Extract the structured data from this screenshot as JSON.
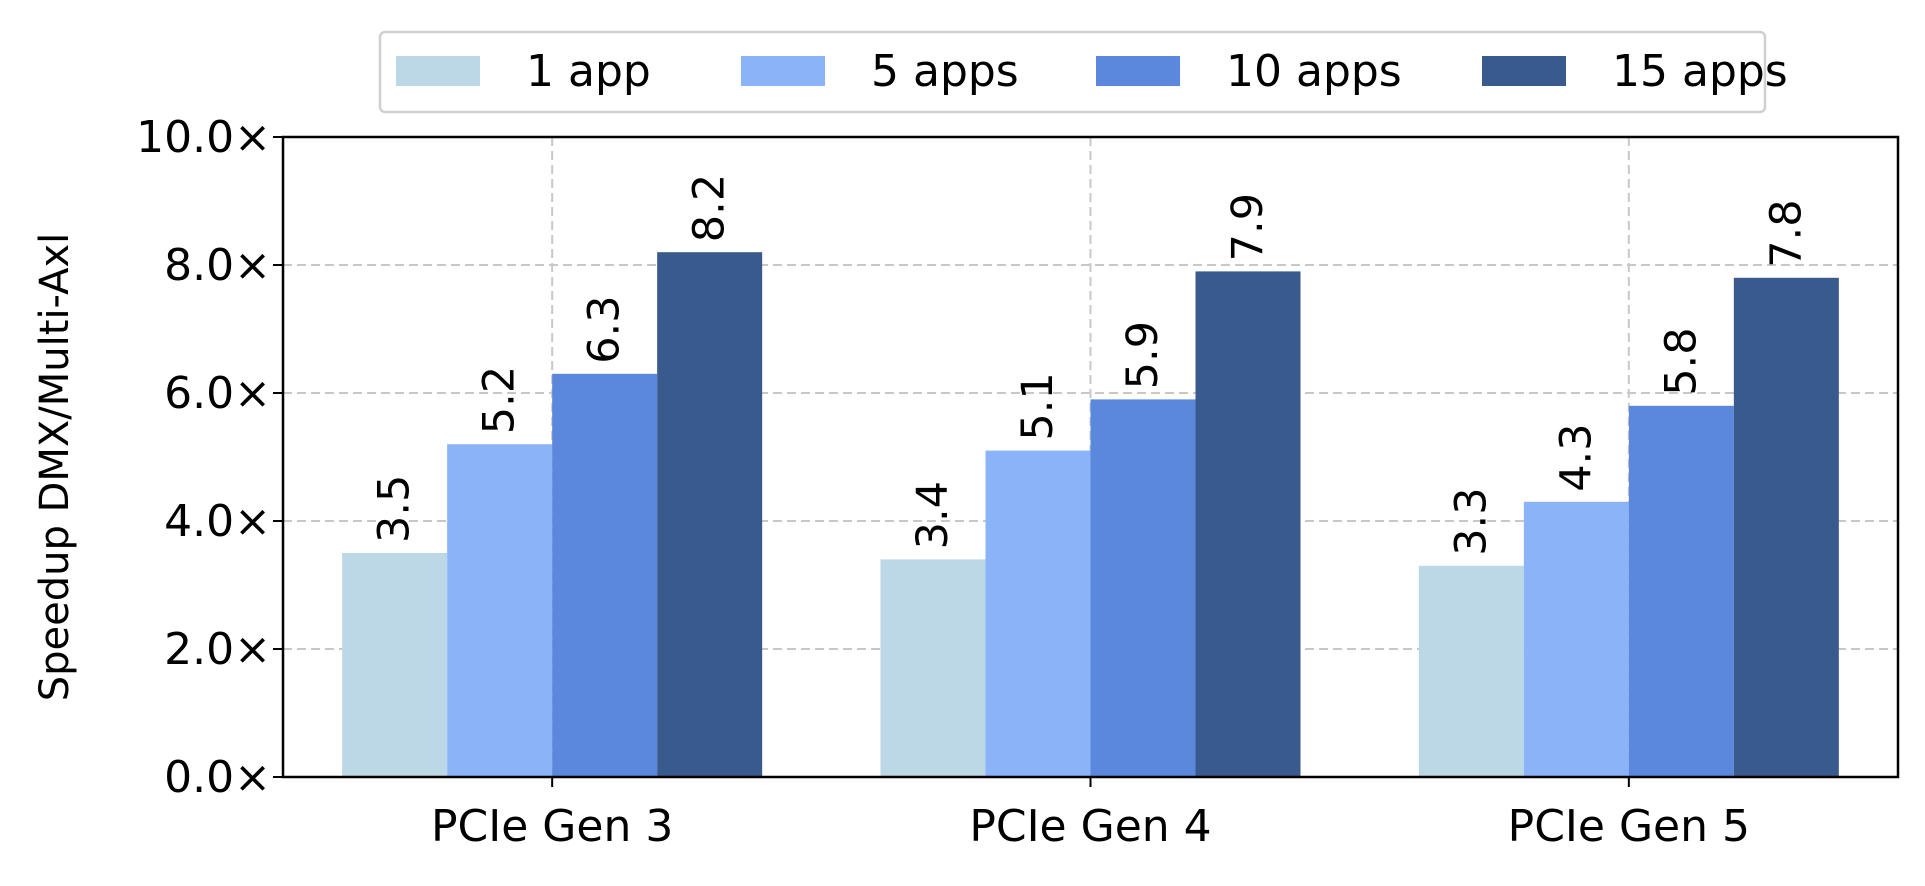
{
  "chart_data": {
    "type": "bar",
    "categories": [
      "PCIe Gen 3",
      "PCIe Gen 4",
      "PCIe Gen 5"
    ],
    "series": [
      {
        "name": "1 app",
        "color": "#bcd8e6",
        "values": [
          3.5,
          3.4,
          3.3
        ]
      },
      {
        "name": "5 apps",
        "color": "#8ab3f8",
        "values": [
          5.2,
          5.1,
          4.3
        ]
      },
      {
        "name": "10 apps",
        "color": "#5b88dc",
        "values": [
          6.3,
          5.9,
          5.8
        ]
      },
      {
        "name": "15 apps",
        "color": "#385a8c",
        "values": [
          8.2,
          7.9,
          7.8
        ]
      }
    ],
    "data_labels": [
      [
        "3.5",
        "3.4",
        "3.3"
      ],
      [
        "5.2",
        "5.1",
        "4.3"
      ],
      [
        "6.3",
        "5.9",
        "5.8"
      ],
      [
        "8.2",
        "7.9",
        "7.8"
      ]
    ],
    "title": "",
    "xlabel": "",
    "ylabel": "Speedup DMX/Multi-Axl",
    "ylim": [
      0,
      10
    ],
    "yticks": [
      0,
      2,
      4,
      6,
      8,
      10
    ],
    "ytick_labels": [
      "0.0×",
      "2.0×",
      "4.0×",
      "6.0×",
      "8.0×",
      "10.0×"
    ],
    "grid": true,
    "legend_position": "top-center"
  }
}
